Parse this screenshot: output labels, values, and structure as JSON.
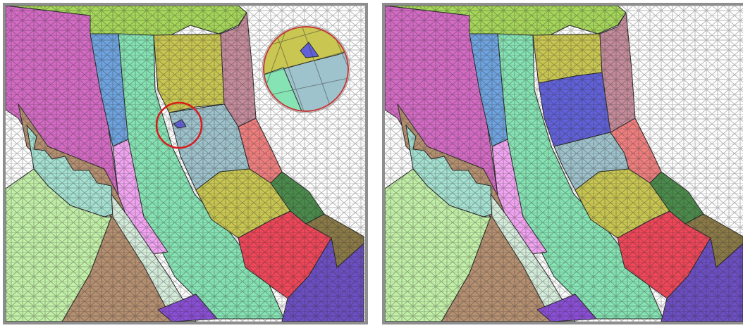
{
  "figure": {
    "panels": [
      {
        "id": "left",
        "variant": "mesh-with-defect",
        "has_zoom_inset": true
      },
      {
        "id": "right",
        "variant": "mesh-refined",
        "has_zoom_inset": false
      }
    ],
    "colors": {
      "frame": "#8e8e8e",
      "mesh_line": "#2b2b2b",
      "highlight_circle": "#d81b1b",
      "magenta": "#d46bc4",
      "blue": "#6fa4e0",
      "mint": "#86e3b4",
      "olive": "#c9c752",
      "dusty_rose": "#c58c9b",
      "pink": "#f2a6f2",
      "steel": "#9fc3cc",
      "salmon": "#ef7f7f",
      "dark_green": "#4b8b4b",
      "light_green": "#c2f0a8",
      "aqua": "#a6e2d2",
      "tan": "#b59071",
      "pale": "#d6eddc",
      "red": "#ef4759",
      "purple": "#6c4fc2",
      "violet": "#8a4fd6",
      "brown_green": "#8b7a47",
      "top_green": "#a6d65a",
      "blue_patch": "#6161d9"
    }
  }
}
